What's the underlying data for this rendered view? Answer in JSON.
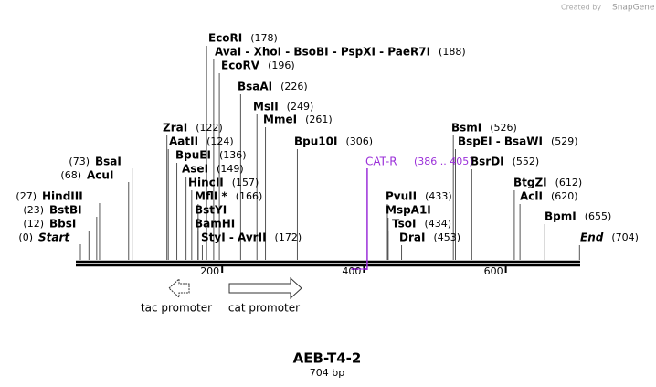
{
  "credit": "Created by",
  "brand": "SnapGene",
  "sites": [
    {
      "name": "EcoRI",
      "pos": "(178)"
    },
    {
      "name": "AvaI - XhoI - BsoBI - PspXI - PaeR7I",
      "pos": "(188)"
    },
    {
      "name": "EcoRV",
      "pos": "(196)"
    },
    {
      "name": "BsaAI",
      "pos": "(226)"
    },
    {
      "name": "MslI",
      "pos": "(249)"
    },
    {
      "name": "MmeI",
      "pos": "(261)"
    },
    {
      "name": "Bpu10I",
      "pos": "(306)"
    },
    {
      "name": "ZraI",
      "pos": "(122)"
    },
    {
      "name": "AatII",
      "pos": "(124)"
    },
    {
      "name": "BpuEI",
      "pos": "(136)"
    },
    {
      "name": "AseI",
      "pos": "(149)"
    },
    {
      "name": "HincII",
      "pos": "(157)"
    },
    {
      "name": "MflI *",
      "pos": "(166)"
    },
    {
      "name": "BstYI"
    },
    {
      "name": "BamHI"
    },
    {
      "name": "StyI - AvrII",
      "pos": "(172)"
    },
    {
      "name": "BsaI",
      "pos": "(73)"
    },
    {
      "name": "AcuI",
      "pos": "(68)"
    },
    {
      "name": "HindIII",
      "pos": "(27)"
    },
    {
      "name": "BstBI",
      "pos": "(23)"
    },
    {
      "name": "BbsI",
      "pos": "(12)"
    },
    {
      "name": "Start",
      "pos": "(0)"
    },
    {
      "name": "PvuII",
      "pos": "(433)"
    },
    {
      "name": "MspA1I"
    },
    {
      "name": "TsoI",
      "pos": "(434)"
    },
    {
      "name": "DraI",
      "pos": "(453)"
    },
    {
      "name": "BsmI",
      "pos": "(526)"
    },
    {
      "name": "BspEI - BsaWI",
      "pos": "(529)"
    },
    {
      "name": "BsrDI",
      "pos": "(552)"
    },
    {
      "name": "BtgZI",
      "pos": "(612)"
    },
    {
      "name": "AclI",
      "pos": "(620)"
    },
    {
      "name": "BpmI",
      "pos": "(655)"
    },
    {
      "name": "End",
      "pos": "(704)"
    }
  ],
  "primer": {
    "name": "CAT-R",
    "range": "(386 .. 405)"
  },
  "ticks": [
    200,
    400,
    600
  ],
  "features": [
    {
      "name": "tac promoter"
    },
    {
      "name": "cat promoter"
    }
  ],
  "title": "AEB-T4-2",
  "length": "704 bp"
}
